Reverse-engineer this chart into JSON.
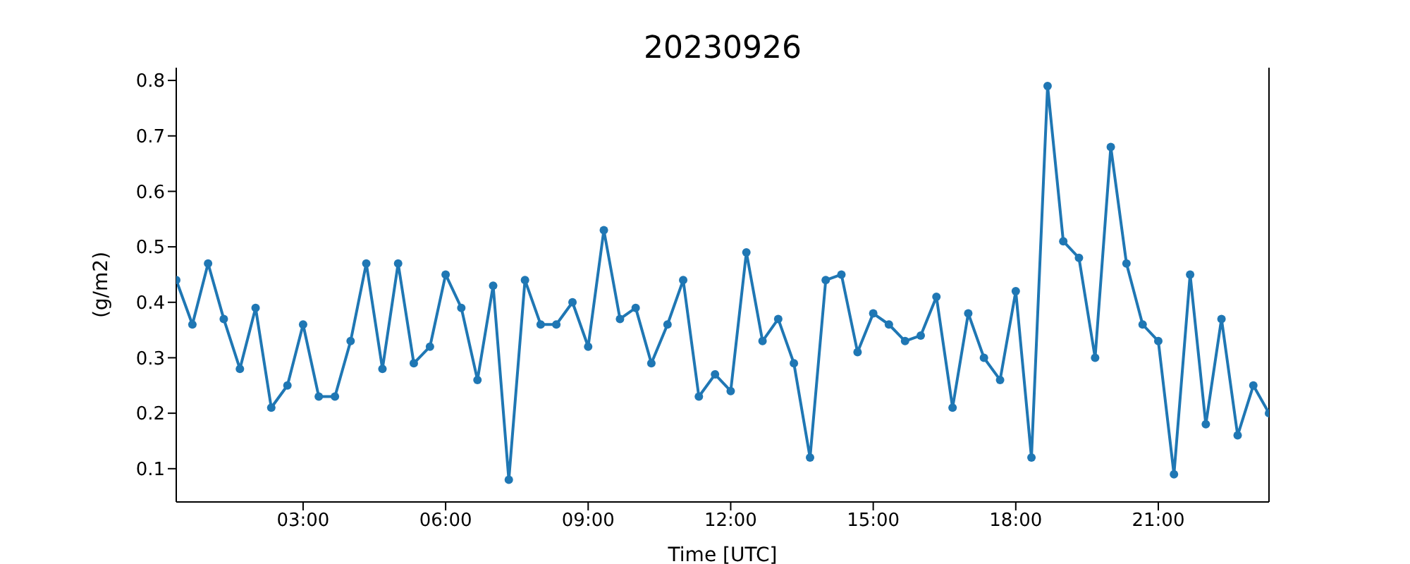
{
  "chart_data": {
    "type": "line",
    "title": "20230926",
    "xlabel": "Time [UTC]",
    "ylabel": "(g/m2)",
    "x": [
      0.33,
      0.67,
      1,
      1.33,
      1.67,
      2,
      2.33,
      2.67,
      3,
      3.33,
      3.67,
      4,
      4.33,
      4.67,
      5,
      5.33,
      5.67,
      6,
      6.33,
      6.67,
      7,
      7.33,
      7.67,
      8,
      8.33,
      8.67,
      9,
      9.33,
      9.67,
      10,
      10.33,
      10.67,
      11,
      11.33,
      11.67,
      12,
      12.33,
      12.67,
      13,
      13.33,
      13.67,
      14,
      14.33,
      14.67,
      15,
      15.33,
      15.67,
      16,
      16.33,
      16.67,
      17,
      17.33,
      17.67,
      18,
      18.33,
      18.67,
      19,
      19.33,
      19.67,
      20,
      20.33,
      20.67,
      21,
      21.33,
      21.67,
      22,
      22.33,
      22.67,
      23,
      23.33
    ],
    "series": [
      {
        "color": "#1f77b4",
        "values": [
          0.44,
          0.36,
          0.47,
          0.37,
          0.28,
          0.39,
          0.21,
          0.25,
          0.36,
          0.23,
          0.23,
          0.33,
          0.47,
          0.28,
          0.47,
          0.29,
          0.32,
          0.45,
          0.39,
          0.26,
          0.43,
          0.08,
          0.44,
          0.36,
          0.36,
          0.4,
          0.32,
          0.53,
          0.37,
          0.39,
          0.29,
          0.36,
          0.44,
          0.23,
          0.27,
          0.24,
          0.49,
          0.33,
          0.37,
          0.29,
          0.12,
          0.44,
          0.45,
          0.31,
          0.38,
          0.36,
          0.33,
          0.34,
          0.41,
          0.21,
          0.38,
          0.3,
          0.26,
          0.42,
          0.12,
          0.79,
          0.51,
          0.48,
          0.3,
          0.68,
          0.47,
          0.36,
          0.33,
          0.09,
          0.45,
          0.18,
          0.37,
          0.16,
          0.25,
          0.2
        ]
      }
    ],
    "xlim": [
      0.33,
      23.33
    ],
    "xticks": [
      {
        "value": 3,
        "label": "03:00"
      },
      {
        "value": 6,
        "label": "06:00"
      },
      {
        "value": 9,
        "label": "09:00"
      },
      {
        "value": 12,
        "label": "12:00"
      },
      {
        "value": 15,
        "label": "15:00"
      },
      {
        "value": 18,
        "label": "18:00"
      },
      {
        "value": 21,
        "label": "21:00"
      }
    ],
    "ylim": [
      0.04,
      0.823
    ],
    "yticks": [
      0.1,
      0.2,
      0.3,
      0.4,
      0.5,
      0.6,
      0.7,
      0.8
    ],
    "marker": "circle",
    "line_style": "solid"
  }
}
